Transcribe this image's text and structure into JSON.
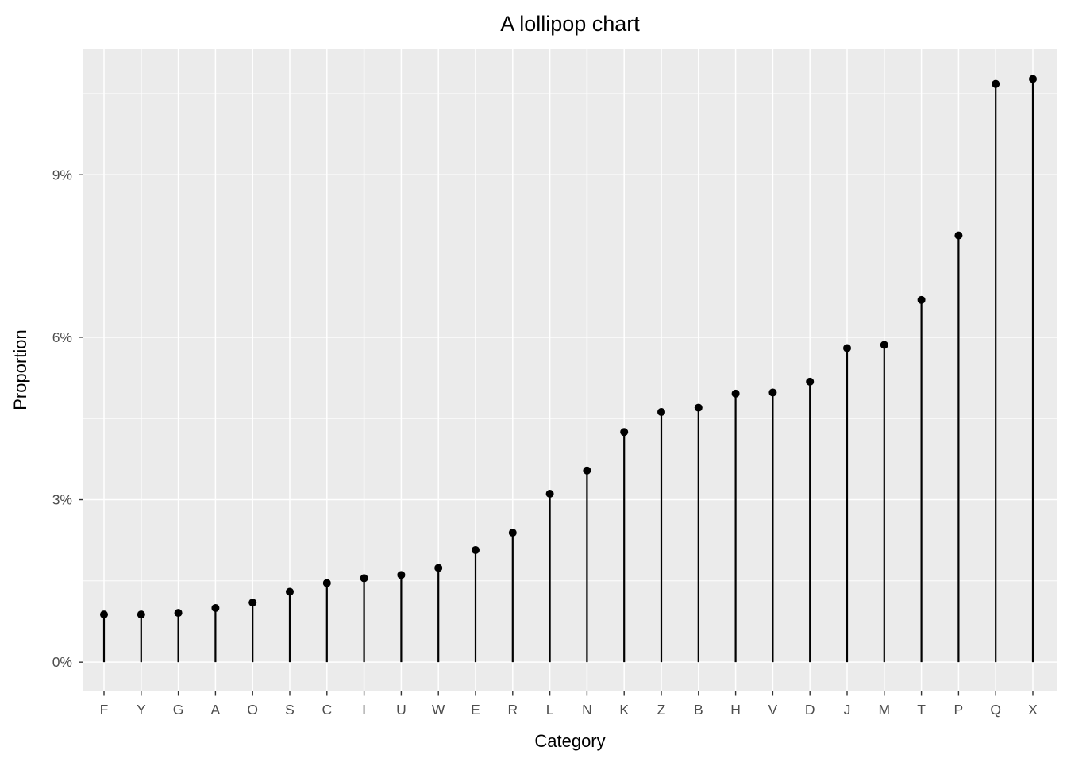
{
  "page": {
    "background": "#FFFFFF"
  },
  "chart_data": {
    "type": "lollipop",
    "base_type": "scatter-with-stems",
    "title": "A lollipop chart",
    "xlabel": "Category",
    "ylabel": "Proportion",
    "categories": [
      "F",
      "Y",
      "G",
      "A",
      "O",
      "S",
      "C",
      "I",
      "U",
      "W",
      "E",
      "R",
      "L",
      "N",
      "K",
      "Z",
      "B",
      "H",
      "V",
      "D",
      "J",
      "M",
      "T",
      "P",
      "Q",
      "X"
    ],
    "values": [
      0.88,
      0.88,
      0.91,
      1.0,
      1.1,
      1.3,
      1.46,
      1.55,
      1.61,
      1.74,
      2.07,
      2.39,
      3.11,
      3.54,
      4.25,
      4.62,
      4.7,
      4.96,
      4.98,
      5.18,
      5.8,
      5.86,
      6.69,
      7.88,
      10.68,
      10.77
    ],
    "value_unit": "percent",
    "y_ticks": {
      "values": [
        0,
        3,
        6,
        9
      ],
      "labels": [
        "0%",
        "3%",
        "6%",
        "9%"
      ]
    },
    "y_minor_gridlines": [
      1.5,
      4.5,
      7.5,
      10.5
    ],
    "ylim": [
      -0.54,
      11.32
    ],
    "grid": "white major gridlines (horizontal at ticks, vertical at each category) plus thin white horizontal minor gridlines on grey panel",
    "legend": "none",
    "colors": {
      "page_background": "#FFFFFF",
      "panel_background": "#EBEBEB",
      "gridline": "#FFFFFF",
      "lollipop": "#000000",
      "tick_label": "#4D4D4D",
      "tick_mark": "#333333",
      "title_text": "#000000"
    }
  }
}
